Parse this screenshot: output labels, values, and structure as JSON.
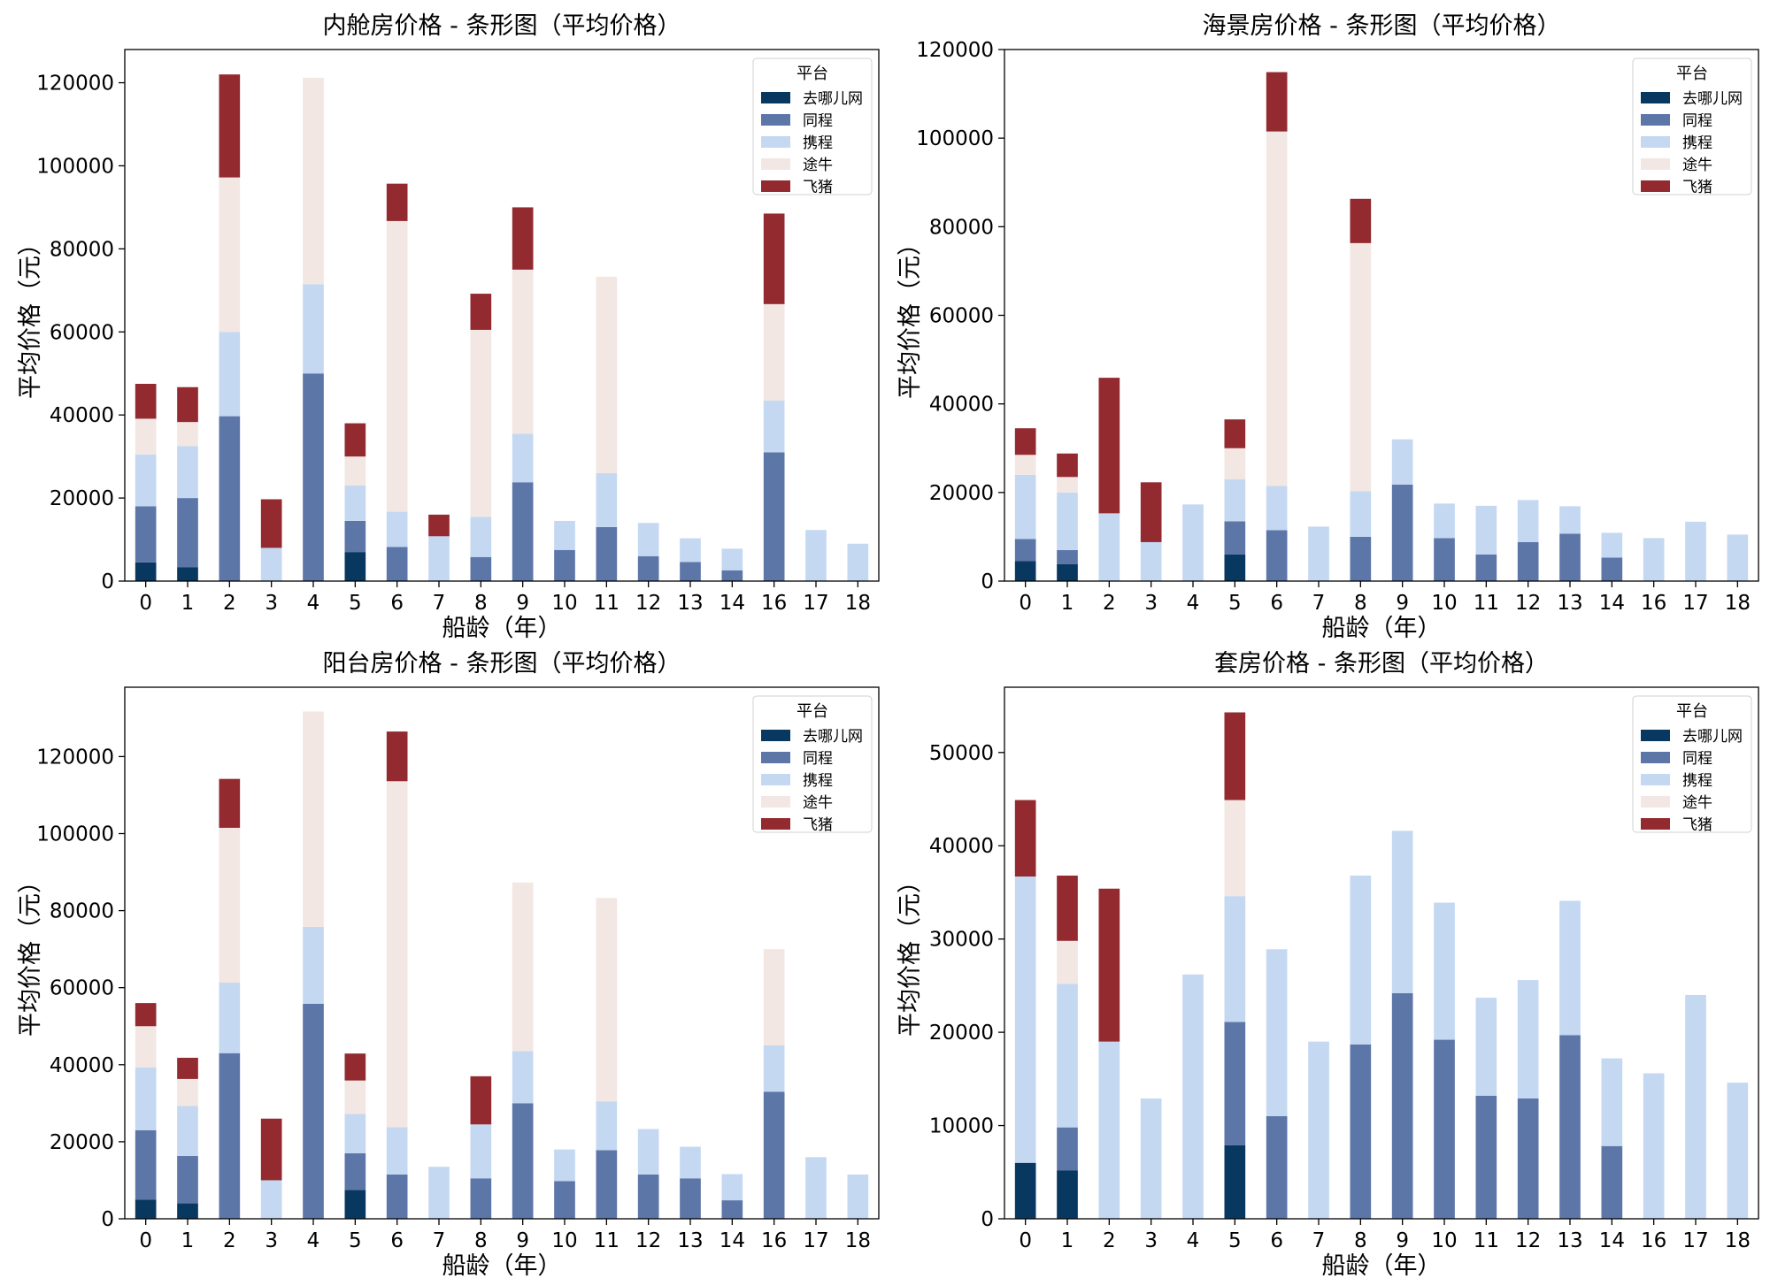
{
  "colors": {
    "去哪儿网": "#08385f",
    "同程": "#5d76a8",
    "携程": "#c4d8f2",
    "途牛": "#f2e7e3",
    "飞猪": "#922a30"
  },
  "chart_data": [
    {
      "type": "bar",
      "stacked": true,
      "title": "内舱房价格 - 条形图（平均价格）",
      "xlabel": "船龄（年）",
      "ylabel": "平均价格（元）",
      "ylim": [
        0,
        128000
      ],
      "yticks": [
        0,
        20000,
        40000,
        60000,
        80000,
        100000,
        120000
      ],
      "legend_title": "平台",
      "legend_position": "top-right",
      "categories": [
        "0",
        "1",
        "2",
        "3",
        "4",
        "5",
        "6",
        "7",
        "8",
        "9",
        "10",
        "11",
        "12",
        "13",
        "14",
        "16",
        "17",
        "18"
      ],
      "series": [
        {
          "name": "去哪儿网",
          "values": [
            4500,
            3300,
            0,
            0,
            0,
            7000,
            0,
            0,
            0,
            0,
            0,
            0,
            0,
            0,
            0,
            0,
            0,
            0
          ]
        },
        {
          "name": "同程",
          "values": [
            13500,
            16700,
            39700,
            0,
            50000,
            7500,
            8200,
            0,
            5800,
            23800,
            7500,
            13000,
            6000,
            4600,
            2600,
            31000,
            0,
            0
          ]
        },
        {
          "name": "携程",
          "values": [
            12500,
            12500,
            20300,
            8000,
            21500,
            8500,
            8500,
            10800,
            9700,
            11700,
            7000,
            13000,
            8000,
            5700,
            5200,
            12500,
            12300,
            9000
          ]
        },
        {
          "name": "途牛",
          "values": [
            8600,
            5800,
            37200,
            0,
            49700,
            7000,
            70000,
            0,
            45000,
            39500,
            0,
            47300,
            0,
            0,
            0,
            23200,
            0,
            0
          ]
        },
        {
          "name": "飞猪",
          "values": [
            8400,
            8400,
            24800,
            11700,
            0,
            8000,
            9000,
            5200,
            8700,
            15000,
            0,
            0,
            0,
            0,
            0,
            21800,
            0,
            0
          ]
        }
      ]
    },
    {
      "type": "bar",
      "stacked": true,
      "title": "海景房价格 - 条形图（平均价格）",
      "xlabel": "船龄（年）",
      "ylabel": "平均价格（元）",
      "ylim": [
        0,
        120000
      ],
      "yticks": [
        0,
        20000,
        40000,
        60000,
        80000,
        100000,
        120000
      ],
      "legend_title": "平台",
      "legend_position": "top-right",
      "categories": [
        "0",
        "1",
        "2",
        "3",
        "4",
        "5",
        "6",
        "7",
        "8",
        "9",
        "10",
        "11",
        "12",
        "13",
        "14",
        "16",
        "17",
        "18"
      ],
      "series": [
        {
          "name": "去哪儿网",
          "values": [
            4500,
            3800,
            0,
            0,
            0,
            6000,
            0,
            0,
            0,
            0,
            0,
            0,
            0,
            0,
            0,
            0,
            0,
            0
          ]
        },
        {
          "name": "同程",
          "values": [
            5000,
            3200,
            0,
            0,
            0,
            7500,
            11500,
            0,
            10000,
            21800,
            9700,
            6000,
            8800,
            10700,
            5300,
            0,
            0,
            0
          ]
        },
        {
          "name": "携程",
          "values": [
            14500,
            13000,
            15300,
            8800,
            17300,
            9500,
            10000,
            12300,
            10300,
            10200,
            7800,
            11000,
            9500,
            6200,
            5600,
            9700,
            13400,
            10500
          ]
        },
        {
          "name": "途牛",
          "values": [
            4500,
            3500,
            0,
            0,
            0,
            7000,
            80000,
            0,
            56000,
            0,
            0,
            0,
            0,
            0,
            0,
            0,
            0,
            0
          ]
        },
        {
          "name": "飞猪",
          "values": [
            6000,
            5300,
            30600,
            13500,
            0,
            6500,
            13400,
            0,
            10000,
            0,
            0,
            0,
            0,
            0,
            0,
            0,
            0,
            0
          ]
        }
      ]
    },
    {
      "type": "bar",
      "stacked": true,
      "title": "阳台房价格 - 条形图（平均价格）",
      "xlabel": "船龄（年）",
      "ylabel": "平均价格（元）",
      "ylim": [
        0,
        138000
      ],
      "yticks": [
        0,
        20000,
        40000,
        60000,
        80000,
        100000,
        120000
      ],
      "legend_title": "平台",
      "legend_position": "top-right",
      "categories": [
        "0",
        "1",
        "2",
        "3",
        "4",
        "5",
        "6",
        "7",
        "8",
        "9",
        "10",
        "11",
        "12",
        "13",
        "14",
        "16",
        "17",
        "18"
      ],
      "series": [
        {
          "name": "去哪儿网",
          "values": [
            5000,
            4000,
            0,
            0,
            0,
            7500,
            0,
            0,
            0,
            0,
            0,
            0,
            0,
            0,
            0,
            0,
            0,
            0
          ]
        },
        {
          "name": "同程",
          "values": [
            18000,
            12300,
            43000,
            0,
            55800,
            9500,
            11500,
            0,
            10500,
            30000,
            9800,
            17800,
            11500,
            10500,
            4800,
            33000,
            0,
            0
          ]
        },
        {
          "name": "携程",
          "values": [
            16300,
            13000,
            18300,
            10000,
            20000,
            10200,
            12300,
            13500,
            14000,
            13500,
            8200,
            12700,
            11800,
            8200,
            6800,
            12000,
            16000,
            11500
          ]
        },
        {
          "name": "途牛",
          "values": [
            10700,
            7000,
            40200,
            0,
            55900,
            8700,
            89800,
            0,
            0,
            43800,
            0,
            52800,
            0,
            0,
            0,
            25000,
            0,
            0
          ]
        },
        {
          "name": "飞猪",
          "values": [
            6000,
            5500,
            12700,
            16000,
            0,
            7000,
            12900,
            0,
            12500,
            0,
            0,
            0,
            0,
            0,
            0,
            0,
            0,
            0
          ]
        }
      ]
    },
    {
      "type": "bar",
      "stacked": true,
      "title": "套房价格 - 条形图（平均价格）",
      "xlabel": "船龄（年）",
      "ylabel": "平均价格（元）",
      "ylim": [
        0,
        57000
      ],
      "yticks": [
        0,
        10000,
        20000,
        30000,
        40000,
        50000
      ],
      "legend_title": "平台",
      "legend_position": "top-right",
      "categories": [
        "0",
        "1",
        "2",
        "3",
        "4",
        "5",
        "6",
        "7",
        "8",
        "9",
        "10",
        "11",
        "12",
        "13",
        "14",
        "16",
        "17",
        "18"
      ],
      "series": [
        {
          "name": "去哪儿网",
          "values": [
            6000,
            5200,
            0,
            0,
            0,
            7900,
            0,
            0,
            0,
            0,
            0,
            0,
            0,
            0,
            0,
            0,
            0,
            0
          ]
        },
        {
          "name": "同程",
          "values": [
            0,
            4600,
            0,
            0,
            0,
            13200,
            11000,
            0,
            18700,
            24200,
            19200,
            13200,
            12900,
            19700,
            7800,
            0,
            0,
            0
          ]
        },
        {
          "name": "携程",
          "values": [
            30700,
            15400,
            19000,
            12900,
            26200,
            13500,
            17900,
            19000,
            18100,
            17400,
            14700,
            10500,
            12700,
            14400,
            9400,
            15600,
            24000,
            14600
          ]
        },
        {
          "name": "途牛",
          "values": [
            0,
            4600,
            0,
            0,
            0,
            10300,
            0,
            0,
            0,
            0,
            0,
            0,
            0,
            0,
            0,
            0,
            0,
            0
          ]
        },
        {
          "name": "飞猪",
          "values": [
            8200,
            7000,
            16400,
            0,
            0,
            9400,
            0,
            0,
            0,
            0,
            0,
            0,
            0,
            0,
            0,
            0,
            0,
            0
          ]
        }
      ]
    }
  ]
}
